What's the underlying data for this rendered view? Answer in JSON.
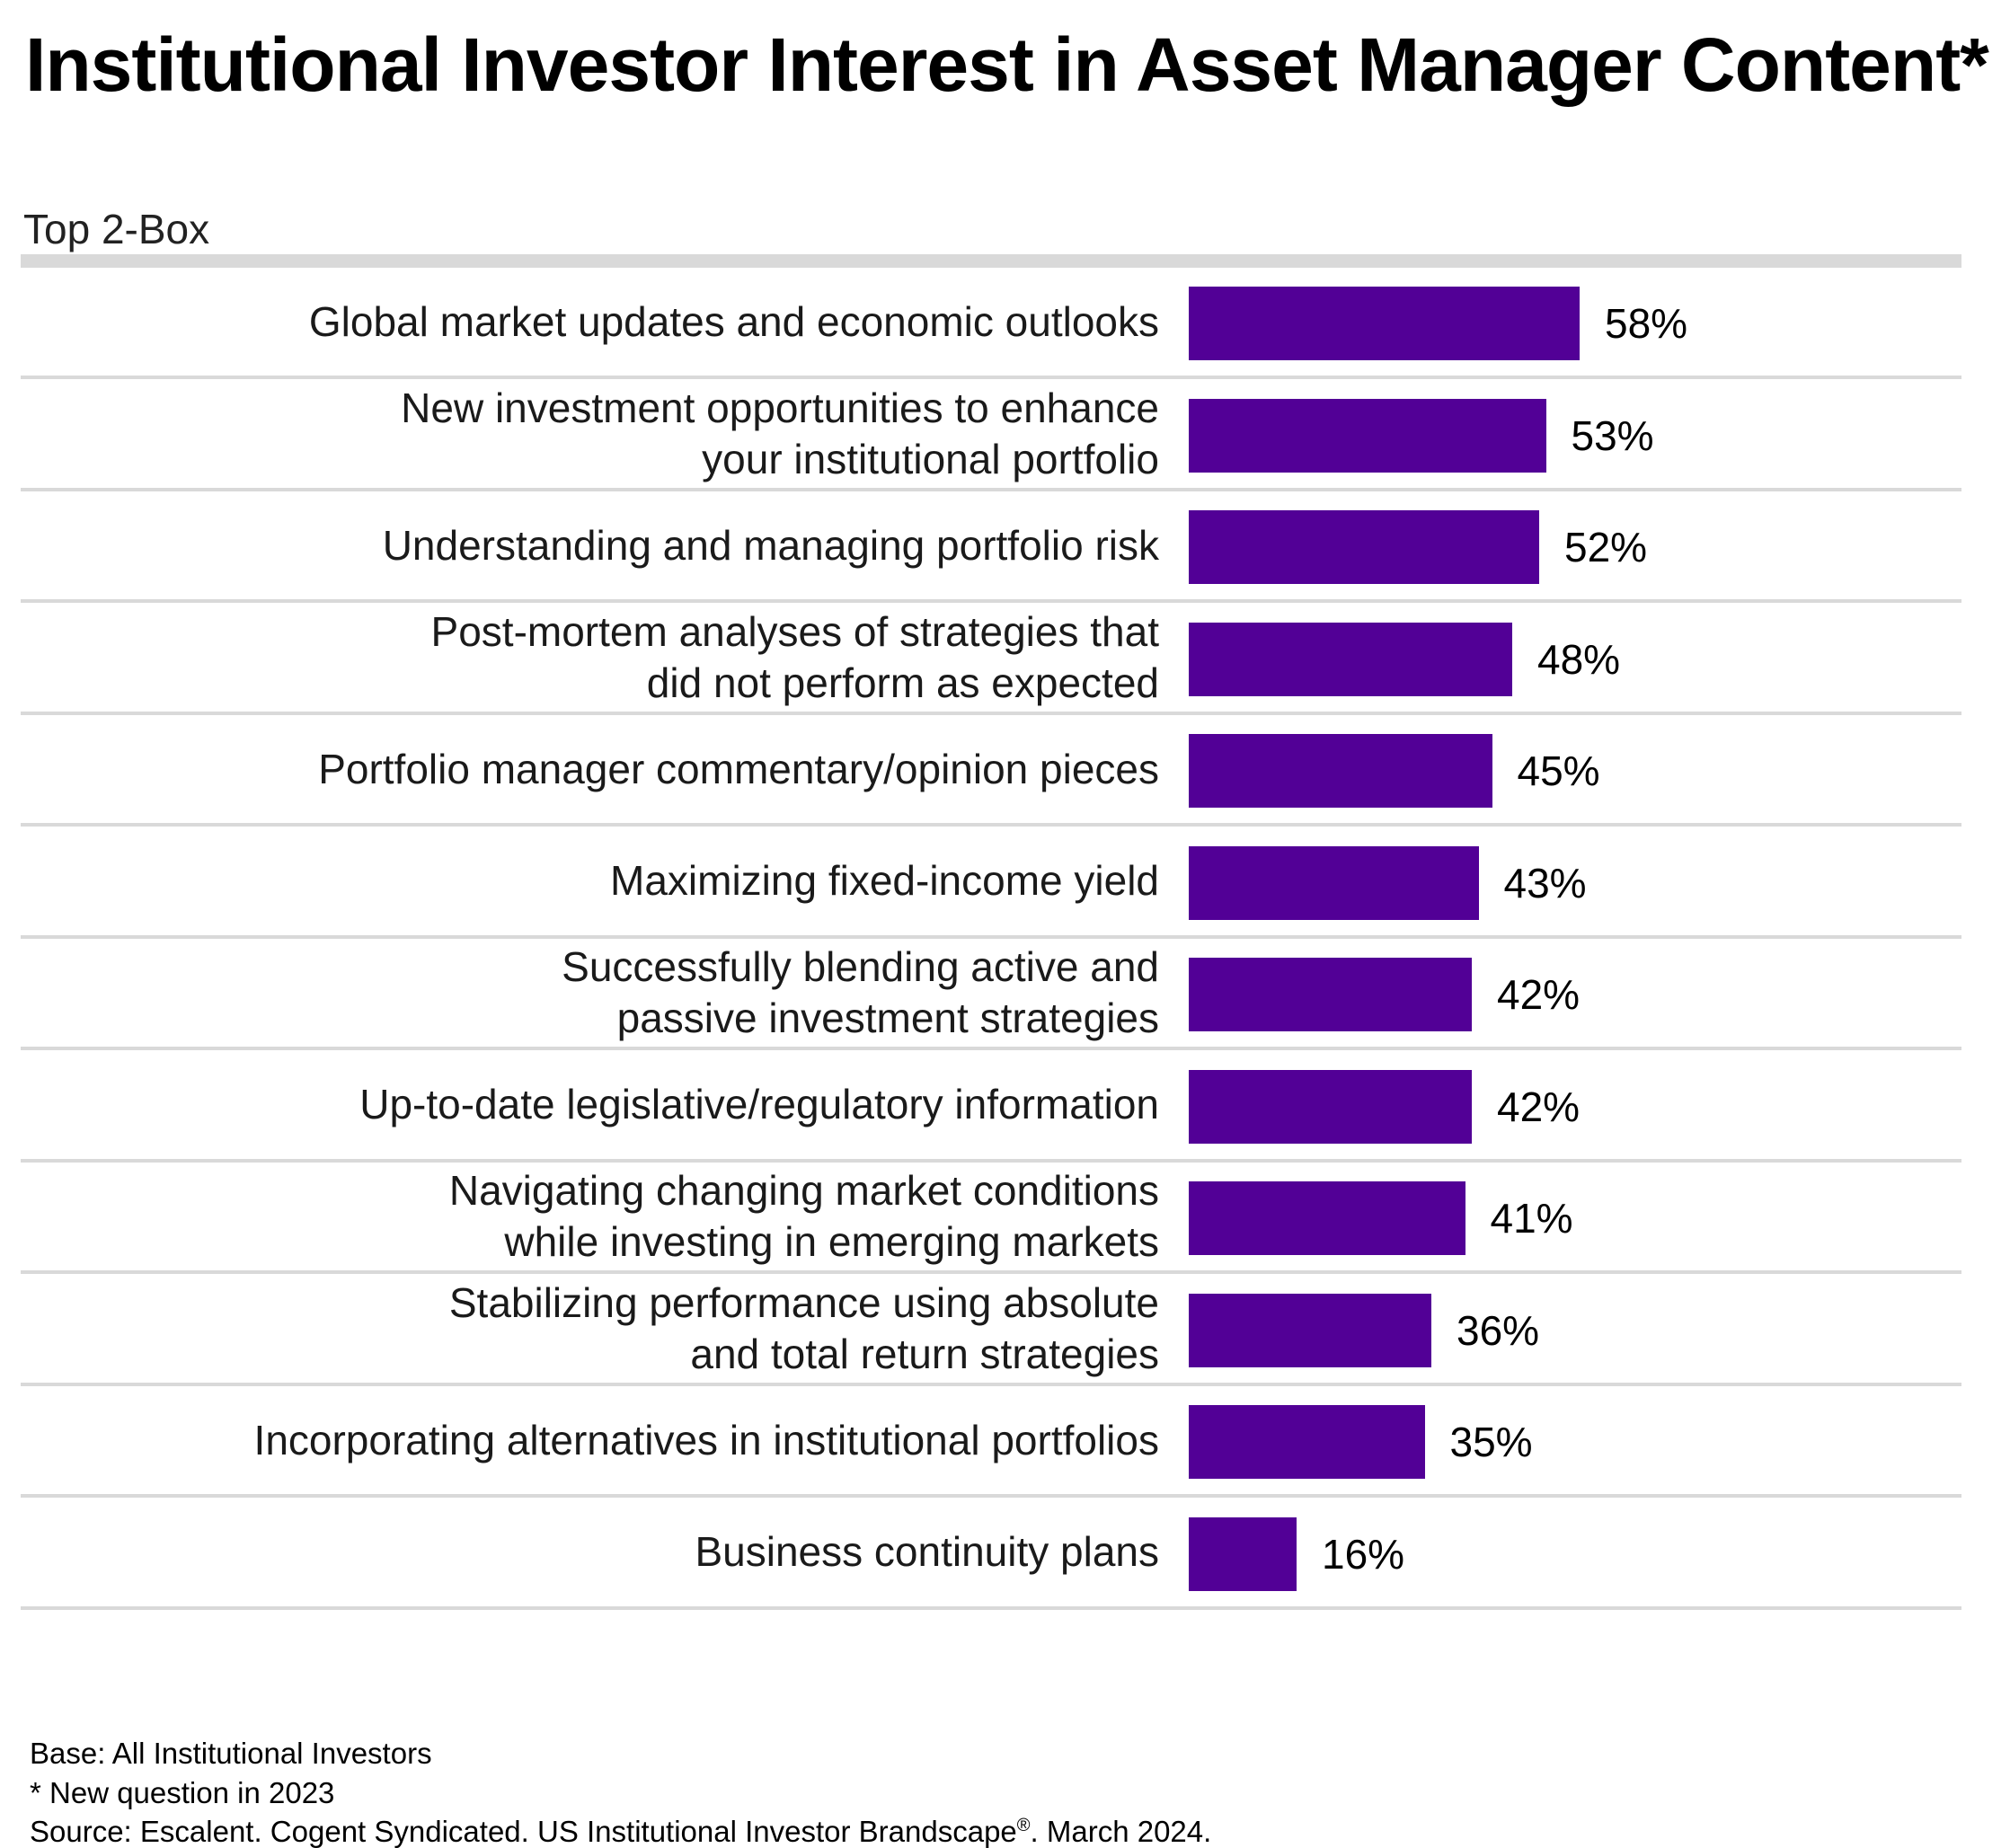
{
  "title": "Institutional Investor Interest in Asset Manager Content*",
  "subtitle": "Top 2-Box",
  "colors": {
    "bar": "#520096",
    "separator": "#d9d9d9"
  },
  "chart_data": {
    "type": "bar",
    "orientation": "horizontal",
    "title": "Institutional Investor Interest in Asset Manager Content*",
    "subtitle": "Top 2-Box",
    "xlim": [
      0,
      100
    ],
    "value_suffix": "%",
    "grid": false,
    "categories": [
      [
        "Global market updates and economic outlooks"
      ],
      [
        "New investment opportunities to enhance",
        "your institutional portfolio"
      ],
      [
        "Understanding and managing portfolio risk"
      ],
      [
        "Post-mortem analyses of strategies that",
        "did not perform as expected"
      ],
      [
        "Portfolio manager commentary/opinion pieces"
      ],
      [
        "Maximizing fixed-income yield"
      ],
      [
        "Successfully blending active and",
        "passive investment strategies"
      ],
      [
        "Up-to-date legislative/regulatory information"
      ],
      [
        "Navigating changing market conditions",
        "while investing in emerging markets"
      ],
      [
        "Stabilizing performance using absolute",
        "and total return strategies"
      ],
      [
        "Incorporating alternatives in institutional portfolios"
      ],
      [
        "Business continuity plans"
      ]
    ],
    "values": [
      58,
      53,
      52,
      48,
      45,
      43,
      42,
      42,
      41,
      36,
      35,
      16
    ],
    "value_labels": [
      "58%",
      "53%",
      "52%",
      "48%",
      "45%",
      "43%",
      "42%",
      "42%",
      "41%",
      "36%",
      "35%",
      "16%"
    ]
  },
  "footer": {
    "base": "Base: All Institutional Investors",
    "note": "* New question in 2023",
    "source_pre": "Source: Escalent. Cogent Syndicated. US Institutional Investor Brandscape",
    "source_mark": "®",
    "source_post": ". March 2024."
  }
}
